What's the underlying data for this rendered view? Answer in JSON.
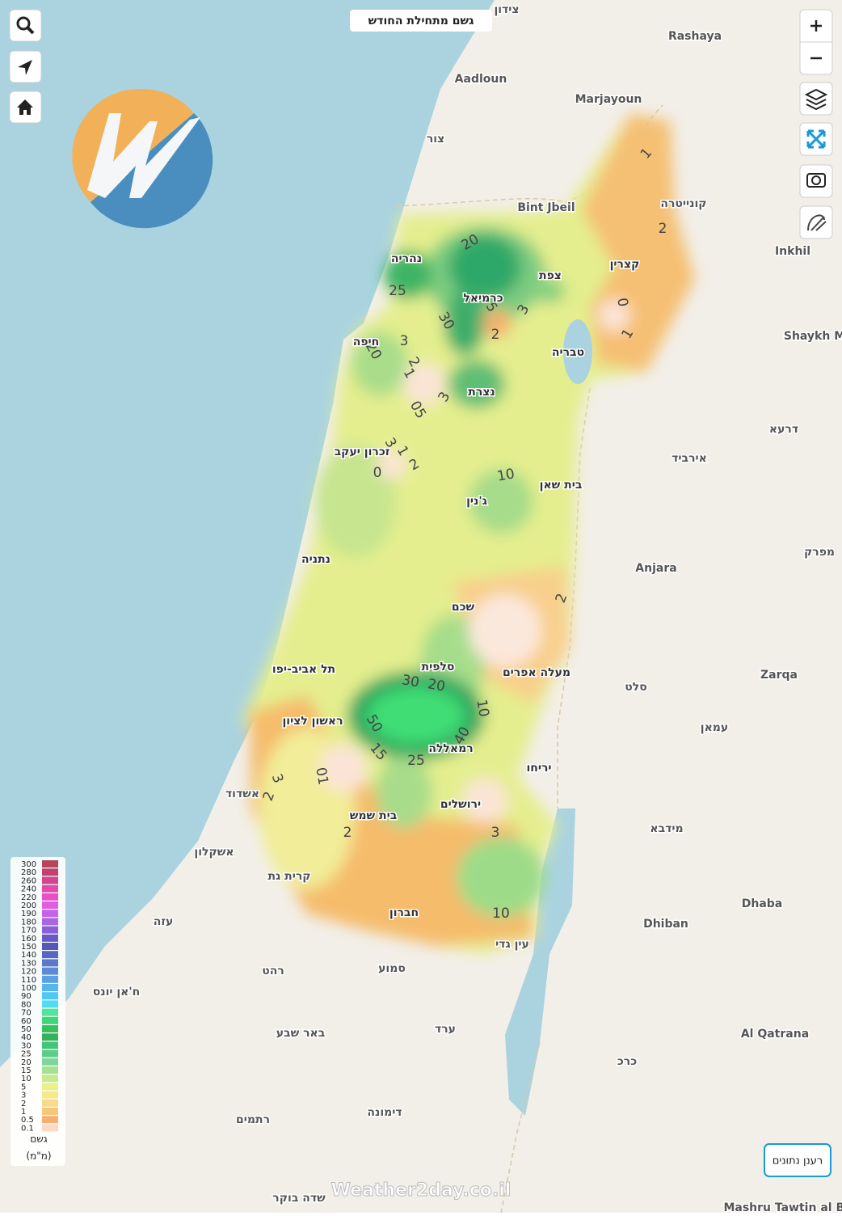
{
  "header": {
    "title": "גשם מתחילת החודש"
  },
  "places": [
    "צידון",
    "Rashaya",
    "Aadloun",
    "Marjayoun",
    "צור",
    "Bint Jbeil",
    "קונייטרה",
    "Inkhil",
    "Shaykh M",
    "דרעא",
    "אירביד",
    "מפרק",
    "Anjara",
    "Zarqa",
    "סלט",
    "עמאן",
    "מידבא",
    "Dhiban",
    "Dhaba",
    "Al Qatrana",
    "כרכ",
    "ערד",
    "באר שבע",
    "דימונה",
    "רתמים",
    "שדה בוקר",
    "ח'אן יונס",
    "רהט",
    "עזה",
    "אשקלון",
    "אשדוד",
    "קרית גת",
    "עין גדי",
    "סמוע",
    "Mashru Tawtin al Ba"
  ],
  "cities": [
    "נהריה",
    "צפת",
    "כרמיאל",
    "קצרין",
    "חיפה",
    "טבריה",
    "נצרת",
    "זכרון יעקב",
    "בית שאן",
    "ג'נין",
    "נתניה",
    "שכם",
    "תל אביב-יפו",
    "סלפית",
    "מעלה אפרים",
    "ראשון לציון",
    "רמאללה",
    "יריחו",
    "ירושלים",
    "בית שמש",
    "חברון"
  ],
  "contours": [
    1,
    2,
    20,
    25,
    30,
    5,
    3,
    2,
    0,
    1,
    3,
    20,
    2,
    1,
    3,
    {
      "value": 0.5,
      "label": "05"
    },
    3,
    1,
    2,
    0,
    10,
    2,
    30,
    20,
    10,
    50,
    15,
    25,
    40,
    3,
    2,
    {
      "value": 1,
      "label": "01"
    },
    2,
    3,
    10
  ],
  "legend": {
    "title": "גשם",
    "unit": "(מ\"מ)",
    "values": [
      300,
      280,
      260,
      240,
      220,
      200,
      190,
      180,
      170,
      160,
      150,
      140,
      130,
      120,
      110,
      100,
      90,
      80,
      70,
      60,
      50,
      40,
      30,
      25,
      20,
      15,
      10,
      5,
      3,
      2,
      1,
      0.5,
      0.1
    ],
    "colors": [
      "#b5465a",
      "#c2406e",
      "#d2448f",
      "#e04aa8",
      "#ea4fc5",
      "#e05ce0",
      "#c463e6",
      "#a866e3",
      "#8a5fd6",
      "#6b58c4",
      "#5558b8",
      "#5766c0",
      "#5b78c9",
      "#5b8bd6",
      "#5aa0e4",
      "#56b4ef",
      "#50c8f5",
      "#4fdcf2",
      "#4fe59a",
      "#3fd67a",
      "#38c060",
      "#33b25c",
      "#42c47d",
      "#5ccc8c",
      "#7ed69a",
      "#a3e08f",
      "#c6ea90",
      "#eaf08a",
      "#f7e98a",
      "#f9d98a",
      "#f8c67a",
      "#f5b070",
      "#fbd9c5"
    ]
  },
  "refresh_button": "רענן נתונים",
  "watermark": "Weather2day.co.il"
}
